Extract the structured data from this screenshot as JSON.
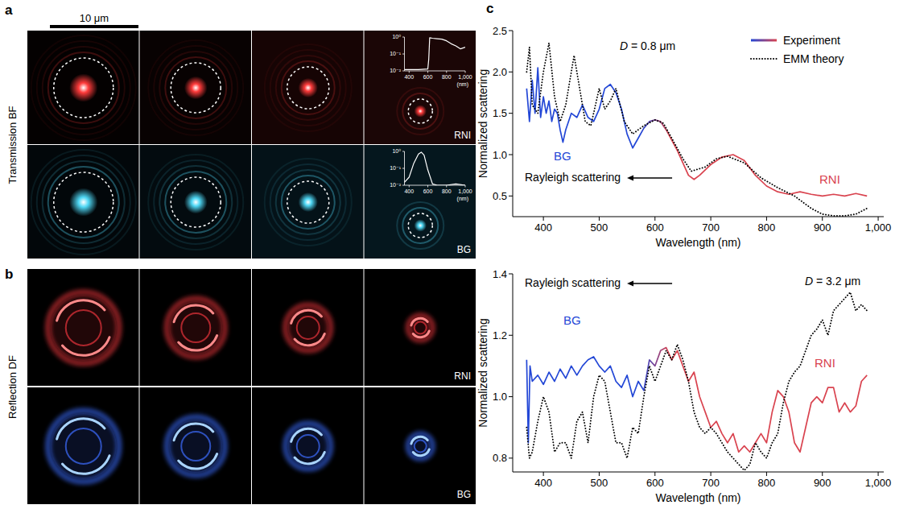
{
  "figure": {
    "panel_a": {
      "letter": "a",
      "row_label": "Transmission BF",
      "scale_bar": "10 μm",
      "row_tags": [
        "RNI",
        "BG"
      ]
    },
    "panel_b": {
      "letter": "b",
      "row_label": "Reflection DF",
      "row_tags": [
        "RNI",
        "BG"
      ]
    },
    "panel_c": {
      "letter": "c"
    }
  },
  "chart_data": [
    {
      "type": "line",
      "log": "y",
      "xlim": [
        350,
        1000
      ],
      "ylim": [
        0.01,
        1
      ],
      "xticks": [
        400,
        600,
        800,
        {
          "value": 1000,
          "label": "1,000"
        }
      ],
      "yticks": [
        {
          "value": 1,
          "label": "10⁰"
        },
        {
          "value": 0.1,
          "label": "10⁻¹"
        },
        {
          "value": 0.01,
          "label": "10⁻²"
        }
      ],
      "x_label": "(nm)",
      "series": [
        {
          "color": "#ffffff",
          "x": [
            350,
            400,
            500,
            600,
            610,
            620,
            650,
            700,
            750,
            800,
            850,
            900,
            950,
            1000
          ],
          "values": [
            0.012,
            0.012,
            0.012,
            0.013,
            0.05,
            0.9,
            0.85,
            0.8,
            0.75,
            0.6,
            0.4,
            0.3,
            0.2,
            0.25
          ]
        }
      ]
    },
    {
      "type": "line",
      "log": "y",
      "xlim": [
        350,
        1000
      ],
      "ylim": [
        0.01,
        1
      ],
      "xticks": [
        400,
        600,
        800,
        {
          "value": 1000,
          "label": "1,000"
        }
      ],
      "yticks": [
        {
          "value": 1,
          "label": "10⁰"
        },
        {
          "value": 0.1,
          "label": "10⁻¹"
        },
        {
          "value": 0.01,
          "label": "10⁻²"
        }
      ],
      "x_label": "(nm)",
      "series": [
        {
          "color": "#ffffff",
          "x": [
            350,
            400,
            450,
            500,
            530,
            560,
            600,
            650,
            700,
            800,
            900,
            1000
          ],
          "values": [
            0.015,
            0.03,
            0.2,
            0.7,
            0.9,
            0.6,
            0.08,
            0.012,
            0.01,
            0.01,
            0.012,
            0.01
          ]
        }
      ]
    },
    {
      "type": "line",
      "title": "D = 0.8 μm",
      "x_label": "Wavelength (nm)",
      "y_label": "Normalized scattering",
      "xlim": [
        345,
        1010
      ],
      "ylim": [
        0.25,
        2.5
      ],
      "xticks": [
        400,
        500,
        600,
        700,
        800,
        900,
        {
          "value": 1000,
          "label": "1,000"
        }
      ],
      "yticks": [
        0.5,
        {
          "value": 1,
          "label": "1.0"
        },
        1.5,
        {
          "value": 2,
          "label": "2.0"
        },
        2.5
      ],
      "legend": "top-right",
      "annotations": [
        {
          "text": "BG",
          "color": "#2347d6"
        },
        {
          "text": "RNI",
          "color": "#d9434f"
        },
        {
          "text": "Rayleigh scattering",
          "color": "#000000"
        }
      ],
      "series": [
        {
          "name": "Experiment",
          "colors": [
            "#2347d6",
            "#d9434f"
          ],
          "x": [
            370,
            375,
            380,
            385,
            390,
            395,
            400,
            405,
            410,
            415,
            420,
            425,
            430,
            435,
            440,
            450,
            460,
            470,
            480,
            490,
            500,
            510,
            520,
            530,
            540,
            550,
            560,
            570,
            580,
            590,
            600,
            610,
            620,
            640,
            660,
            670,
            680,
            700,
            720,
            740,
            760,
            780,
            800,
            820,
            840,
            860,
            880,
            900,
            920,
            940,
            960,
            980
          ],
          "values": [
            1.8,
            1.4,
            1.9,
            1.5,
            2.05,
            1.45,
            1.7,
            1.5,
            1.65,
            1.4,
            1.55,
            1.5,
            1.3,
            1.15,
            1.3,
            1.5,
            1.45,
            1.6,
            1.45,
            1.4,
            1.55,
            1.8,
            1.85,
            1.75,
            1.55,
            1.25,
            1.08,
            1.2,
            1.32,
            1.4,
            1.42,
            1.4,
            1.3,
            1.05,
            0.75,
            0.7,
            0.75,
            0.88,
            0.97,
            1.0,
            0.93,
            0.75,
            0.62,
            0.55,
            0.52,
            0.55,
            0.52,
            0.5,
            0.52,
            0.5,
            0.53,
            0.5
          ]
        },
        {
          "name": "EMM theory",
          "color": "#000000",
          "line_style": "dotted",
          "x": [
            370,
            375,
            380,
            390,
            400,
            410,
            420,
            430,
            440,
            455,
            465,
            475,
            485,
            500,
            510,
            520,
            530,
            545,
            560,
            580,
            600,
            615,
            630,
            650,
            665,
            690,
            710,
            730,
            760,
            790,
            820,
            850,
            880,
            900,
            920,
            940,
            960,
            980
          ],
          "values": [
            2.0,
            2.3,
            1.6,
            1.5,
            2.0,
            2.35,
            1.7,
            1.4,
            1.6,
            2.2,
            1.8,
            1.4,
            1.35,
            1.8,
            1.55,
            1.65,
            1.8,
            1.4,
            1.25,
            1.35,
            1.42,
            1.38,
            1.2,
            0.95,
            0.8,
            0.85,
            0.95,
            0.98,
            0.9,
            0.72,
            0.6,
            0.5,
            0.35,
            0.28,
            0.26,
            0.26,
            0.28,
            0.35
          ]
        }
      ]
    },
    {
      "type": "line",
      "title": "D = 3.2 μm",
      "x_label": "Wavelength (nm)",
      "y_label": "Normalized scattering",
      "xlim": [
        345,
        1010
      ],
      "ylim": [
        0.755,
        1.4
      ],
      "xticks": [
        400,
        500,
        600,
        700,
        800,
        900,
        {
          "value": 1000,
          "label": "1,000"
        }
      ],
      "yticks": [
        0.8,
        {
          "value": 1,
          "label": "1.0"
        },
        1.2,
        1.4
      ],
      "annotations": [
        {
          "text": "BG",
          "color": "#2347d6"
        },
        {
          "text": "RNI",
          "color": "#d9434f"
        },
        {
          "text": "Rayleigh scattering",
          "color": "#000000"
        }
      ],
      "series": [
        {
          "colors": [
            "#2347d6",
            "#d9434f"
          ],
          "x": [
            370,
            373,
            376,
            380,
            390,
            400,
            410,
            420,
            430,
            440,
            450,
            460,
            470,
            480,
            490,
            500,
            510,
            520,
            530,
            540,
            550,
            560,
            570,
            580,
            590,
            600,
            610,
            620,
            630,
            640,
            650,
            660,
            670,
            680,
            690,
            700,
            710,
            720,
            730,
            740,
            750,
            760,
            770,
            780,
            790,
            800,
            810,
            820,
            830,
            840,
            850,
            860,
            870,
            880,
            890,
            900,
            910,
            920,
            930,
            940,
            950,
            960,
            970,
            980
          ],
          "values": [
            1.12,
            0.85,
            1.1,
            1.05,
            1.07,
            1.04,
            1.08,
            1.05,
            1.09,
            1.06,
            1.1,
            1.07,
            1.1,
            1.12,
            1.13,
            1.1,
            1.08,
            1.1,
            1.05,
            1.03,
            1.07,
            1.0,
            1.05,
            1.02,
            1.12,
            1.1,
            1.15,
            1.16,
            1.12,
            1.15,
            1.1,
            1.05,
            1.08,
            1.0,
            0.95,
            0.9,
            0.92,
            0.88,
            0.85,
            0.88,
            0.82,
            0.84,
            0.82,
            0.85,
            0.88,
            0.85,
            0.95,
            1.02,
            1.0,
            0.95,
            0.85,
            0.82,
            0.9,
            0.98,
            1.0,
            0.98,
            1.03,
            1.03,
            0.95,
            0.98,
            0.95,
            0.97,
            1.05,
            1.07
          ]
        },
        {
          "color": "#000000",
          "line_style": "dotted",
          "x": [
            370,
            375,
            380,
            390,
            400,
            410,
            420,
            430,
            440,
            450,
            460,
            470,
            480,
            490,
            500,
            510,
            520,
            530,
            540,
            550,
            560,
            570,
            580,
            590,
            600,
            610,
            620,
            630,
            640,
            650,
            660,
            670,
            680,
            690,
            700,
            710,
            720,
            730,
            740,
            750,
            760,
            770,
            780,
            790,
            800,
            810,
            820,
            830,
            840,
            850,
            860,
            870,
            880,
            890,
            900,
            910,
            920,
            930,
            940,
            950,
            960,
            970,
            980
          ],
          "values": [
            0.9,
            0.8,
            0.82,
            0.92,
            1.0,
            0.95,
            0.82,
            0.85,
            0.85,
            0.8,
            0.92,
            0.95,
            0.85,
            1.0,
            1.07,
            1.05,
            0.95,
            0.85,
            0.85,
            0.8,
            0.9,
            0.88,
            1.0,
            1.1,
            1.05,
            1.1,
            1.15,
            1.12,
            1.17,
            1.12,
            1.05,
            0.95,
            0.9,
            0.88,
            0.9,
            0.88,
            0.85,
            0.82,
            0.8,
            0.78,
            0.76,
            0.78,
            0.85,
            0.82,
            0.8,
            0.85,
            0.88,
            0.98,
            1.05,
            1.08,
            1.1,
            1.15,
            1.2,
            1.22,
            1.25,
            1.2,
            1.28,
            1.3,
            1.32,
            1.34,
            1.28,
            1.3,
            1.28
          ]
        }
      ]
    }
  ]
}
